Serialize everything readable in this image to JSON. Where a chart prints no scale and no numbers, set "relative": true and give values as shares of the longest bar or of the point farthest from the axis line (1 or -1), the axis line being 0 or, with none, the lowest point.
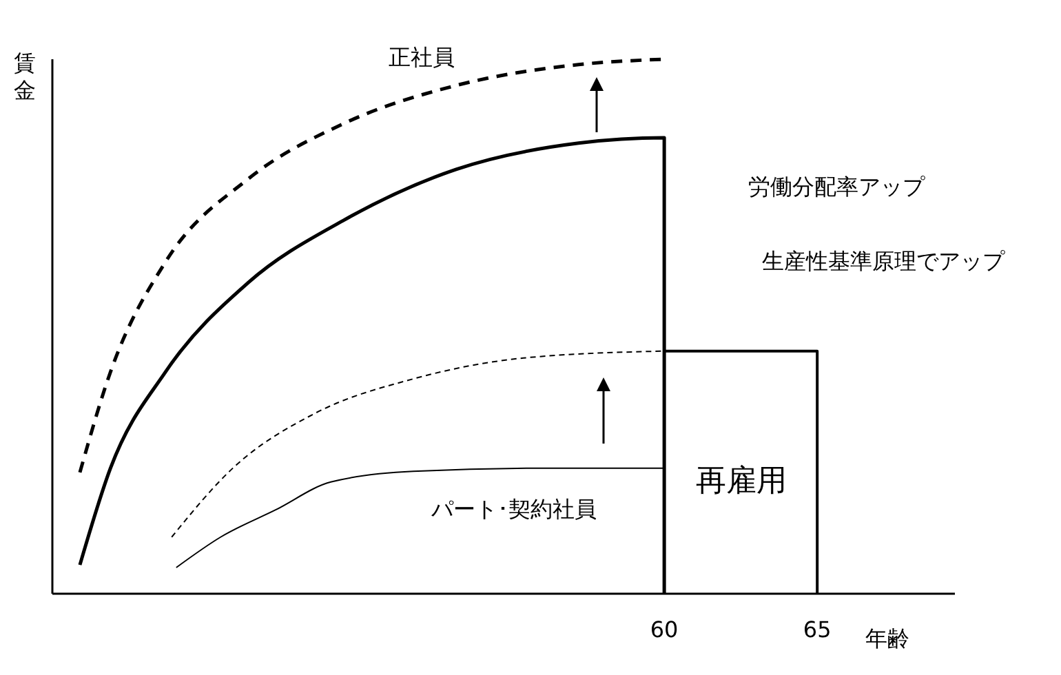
{
  "chart_data": {
    "type": "line",
    "relative": true,
    "xlabel": "年齢",
    "ylabel": "賃金",
    "xlim": [
      40,
      69.5
    ],
    "xticks": [
      60,
      65
    ],
    "tick_labels": "x",
    "grid": false,
    "legend": false,
    "marker": "none",
    "series": [
      {
        "color": "#000000",
        "line_style": "dashed",
        "x": [
          40.9,
          41.9,
          43.7,
          46.4,
          49.5,
          53.2,
          57.2,
          60
        ],
        "values": [
          0.227,
          0.415,
          0.621,
          0.776,
          0.879,
          0.951,
          0.99,
          1
        ]
      },
      {
        "color": "#000000",
        "line_style": "solid",
        "x": [
          40.9,
          41.9,
          43.7,
          46.4,
          49.5,
          53.2,
          57.2,
          60,
          60
        ],
        "values": [
          0.054,
          0.235,
          0.415,
          0.582,
          0.698,
          0.794,
          0.843,
          0.853,
          0
        ]
      },
      {
        "color": "#000000",
        "line_style": "dashed",
        "x": [
          43.9,
          45.9,
          48.6,
          51.8,
          55.4,
          60
        ],
        "values": [
          0.106,
          0.235,
          0.338,
          0.402,
          0.441,
          0.454
        ]
      },
      {
        "color": "#000000",
        "line_style": "solid",
        "x": [
          44.05,
          45.5,
          47.3,
          49.1,
          51.8,
          56.3,
          60
        ],
        "values": [
          0.049,
          0.106,
          0.157,
          0.209,
          0.229,
          0.235,
          0.235
        ]
      },
      {
        "color": "#000000",
        "line_style": "solid",
        "x": [
          60,
          65,
          65
        ],
        "values": [
          0.454,
          0.454,
          0
        ]
      }
    ],
    "annotations": [
      "正社員",
      "パート･契約社員",
      "再雇用",
      "労働分配率アップ",
      "生産性基準原理でアップ"
    ]
  }
}
